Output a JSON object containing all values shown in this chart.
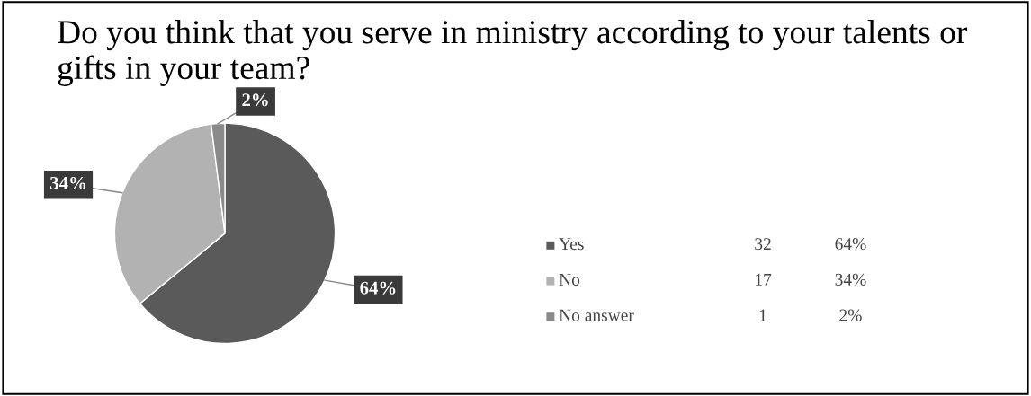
{
  "chart_data": {
    "type": "pie",
    "title": "Do you think that you serve in ministry according to your talents or gifts in your team?",
    "categories": [
      "Yes",
      "No",
      "No answer"
    ],
    "values": [
      64,
      34,
      2
    ],
    "annotations": [
      "32",
      "17",
      "1"
    ],
    "value_labels": [
      "64%",
      "34%",
      "2%"
    ],
    "colors": [
      "#5a5a5a",
      "#b2b2b2",
      "#8a8a8a"
    ],
    "legend": "right"
  }
}
